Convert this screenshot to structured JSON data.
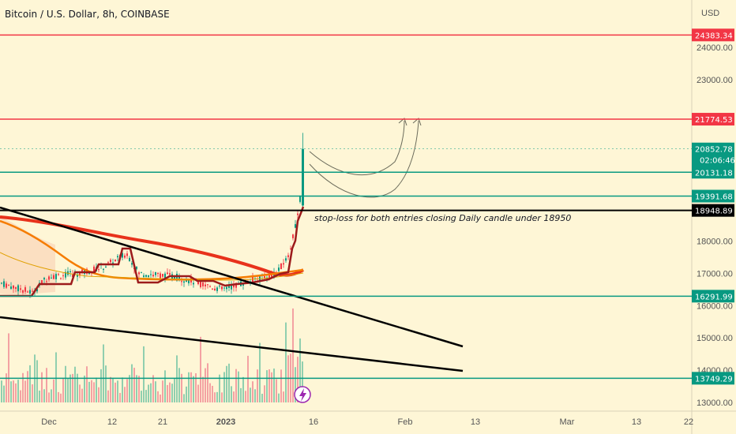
{
  "header": {
    "title": "Bitcoin / U.S. Dollar, 8h, COINBASE"
  },
  "annotation": {
    "note": "stop-loss for both entries closing Daily candle under 18950"
  },
  "chart_data": {
    "type": "candlestick",
    "currency": "USD",
    "y_ticks": [
      13000,
      14000,
      15000,
      16000,
      17000,
      18000,
      23000,
      24000
    ],
    "y_tick_labels": [
      "13000.00",
      "14000.00",
      "15000.00",
      "16000.00",
      "17000.00",
      "18000.00",
      "23000.00",
      "24000.00"
    ],
    "x_ticks": [
      "Dec",
      "12",
      "21",
      "2023",
      "16",
      "Feb",
      "13",
      "Mar",
      "13",
      "22"
    ],
    "horizontal_levels": [
      {
        "value": 24383.34,
        "label": "24383.34",
        "color": "#f23645"
      },
      {
        "value": 21774.53,
        "label": "21774.53",
        "color": "#f23645"
      },
      {
        "value": 20131.18,
        "label": "20131.18",
        "color": "#089981"
      },
      {
        "value": 19391.68,
        "label": "19391.68",
        "color": "#089981"
      },
      {
        "value": 18948.89,
        "label": "18948.89",
        "color": "#000000"
      },
      {
        "value": 16291.99,
        "label": "16291.99",
        "color": "#089981"
      },
      {
        "value": 13749.29,
        "label": "13749.29",
        "color": "#089981"
      }
    ],
    "last_price": {
      "value": 20852.78,
      "label": "20852.78",
      "countdown": "02:06:46",
      "color": "#089981"
    },
    "colors": {
      "up": "#089981",
      "down": "#f23645",
      "background": "#fef6d6"
    }
  }
}
